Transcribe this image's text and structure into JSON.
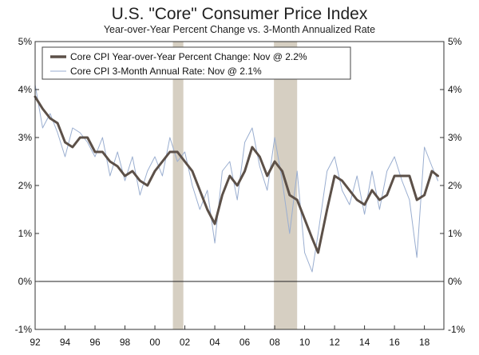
{
  "chart_data": {
    "type": "line",
    "title": "U.S. \"Core\" Consumer Price Index",
    "subtitle": "Year-over-Year Percent Change vs. 3-Month Annualized Rate",
    "xlabel": "",
    "ylabel": "",
    "xlim": [
      1992.0,
      2019.3
    ],
    "ylim": [
      -1,
      5
    ],
    "y_ticks": [
      -1,
      0,
      1,
      2,
      3,
      4,
      5
    ],
    "y_tick_labels_left": [
      "-1%",
      "0%",
      "1%",
      "2%",
      "3%",
      "4%",
      "5%"
    ],
    "y_tick_labels_right": [
      "-1%",
      "0%",
      "1%",
      "2%",
      "3%",
      "4%",
      "5%"
    ],
    "x_ticks": [
      1992,
      1994,
      1996,
      1998,
      2000,
      2002,
      2004,
      2006,
      2008,
      2010,
      2012,
      2014,
      2016,
      2018
    ],
    "x_tick_labels": [
      "92",
      "94",
      "96",
      "98",
      "00",
      "02",
      "04",
      "06",
      "08",
      "10",
      "12",
      "14",
      "16",
      "18"
    ],
    "grid": false,
    "zero_line": true,
    "legend_position": "top-left",
    "recessions": [
      [
        2001.2,
        2001.9
      ],
      [
        2007.95,
        2009.5
      ]
    ],
    "colors": {
      "recession": "#d6cfc2",
      "yoy": "#5c5048",
      "ann": "#9aaed0"
    },
    "series": [
      {
        "name": "Core CPI Year-over-Year Percent Change: Nov @ 2.2%",
        "style": "thick",
        "x": [
          1992.0,
          1992.5,
          1993.0,
          1993.5,
          1994.0,
          1994.5,
          1995.0,
          1995.5,
          1996.0,
          1996.5,
          1997.0,
          1997.5,
          1998.0,
          1998.5,
          1999.0,
          1999.5,
          2000.0,
          2000.5,
          2001.0,
          2001.5,
          2002.0,
          2002.5,
          2003.0,
          2003.5,
          2004.0,
          2004.5,
          2005.0,
          2005.5,
          2006.0,
          2006.5,
          2007.0,
          2007.5,
          2008.0,
          2008.5,
          2009.0,
          2009.5,
          2010.0,
          2010.5,
          2010.9,
          2011.5,
          2012.0,
          2012.5,
          2013.0,
          2013.5,
          2014.0,
          2014.5,
          2015.0,
          2015.5,
          2016.0,
          2016.5,
          2017.0,
          2017.5,
          2018.0,
          2018.5,
          2018.9
        ],
        "values": [
          3.85,
          3.6,
          3.4,
          3.3,
          2.9,
          2.8,
          3.0,
          3.0,
          2.7,
          2.7,
          2.5,
          2.4,
          2.2,
          2.3,
          2.1,
          2.0,
          2.3,
          2.5,
          2.7,
          2.7,
          2.5,
          2.3,
          1.9,
          1.5,
          1.2,
          1.8,
          2.2,
          2.0,
          2.3,
          2.8,
          2.6,
          2.2,
          2.5,
          2.3,
          1.8,
          1.7,
          1.3,
          0.9,
          0.6,
          1.5,
          2.2,
          2.1,
          1.9,
          1.7,
          1.6,
          1.9,
          1.7,
          1.8,
          2.2,
          2.2,
          2.2,
          1.7,
          1.8,
          2.3,
          2.2
        ]
      },
      {
        "name": "Core CPI 3-Month Annual Rate: Nov @ 2.1%",
        "style": "thin",
        "x": [
          1992.0,
          1992.5,
          1993.0,
          1993.5,
          1994.0,
          1994.5,
          1995.0,
          1995.5,
          1996.0,
          1996.5,
          1997.0,
          1997.5,
          1998.0,
          1998.5,
          1999.0,
          1999.5,
          2000.0,
          2000.5,
          2001.0,
          2001.5,
          2002.0,
          2002.5,
          2003.0,
          2003.5,
          2004.0,
          2004.5,
          2005.0,
          2005.5,
          2006.0,
          2006.5,
          2007.0,
          2007.5,
          2008.0,
          2008.5,
          2009.0,
          2009.5,
          2010.0,
          2010.5,
          2010.9,
          2011.5,
          2012.0,
          2012.5,
          2013.0,
          2013.5,
          2014.0,
          2014.5,
          2015.0,
          2015.5,
          2016.0,
          2016.5,
          2017.0,
          2017.5,
          2018.0,
          2018.5,
          2018.9
        ],
        "values": [
          4.1,
          3.2,
          3.5,
          3.1,
          2.6,
          3.2,
          3.1,
          2.9,
          2.6,
          3.0,
          2.2,
          2.7,
          2.1,
          2.6,
          1.8,
          2.3,
          2.6,
          2.2,
          3.0,
          2.5,
          2.7,
          2.0,
          1.5,
          1.9,
          0.8,
          2.3,
          2.5,
          1.7,
          2.9,
          3.2,
          2.4,
          1.9,
          3.0,
          2.1,
          1.0,
          2.3,
          0.6,
          0.2,
          1.0,
          2.3,
          2.6,
          1.9,
          1.6,
          2.2,
          1.4,
          2.3,
          1.5,
          2.3,
          2.6,
          2.1,
          1.7,
          0.5,
          2.8,
          2.4,
          2.1
        ]
      }
    ]
  }
}
